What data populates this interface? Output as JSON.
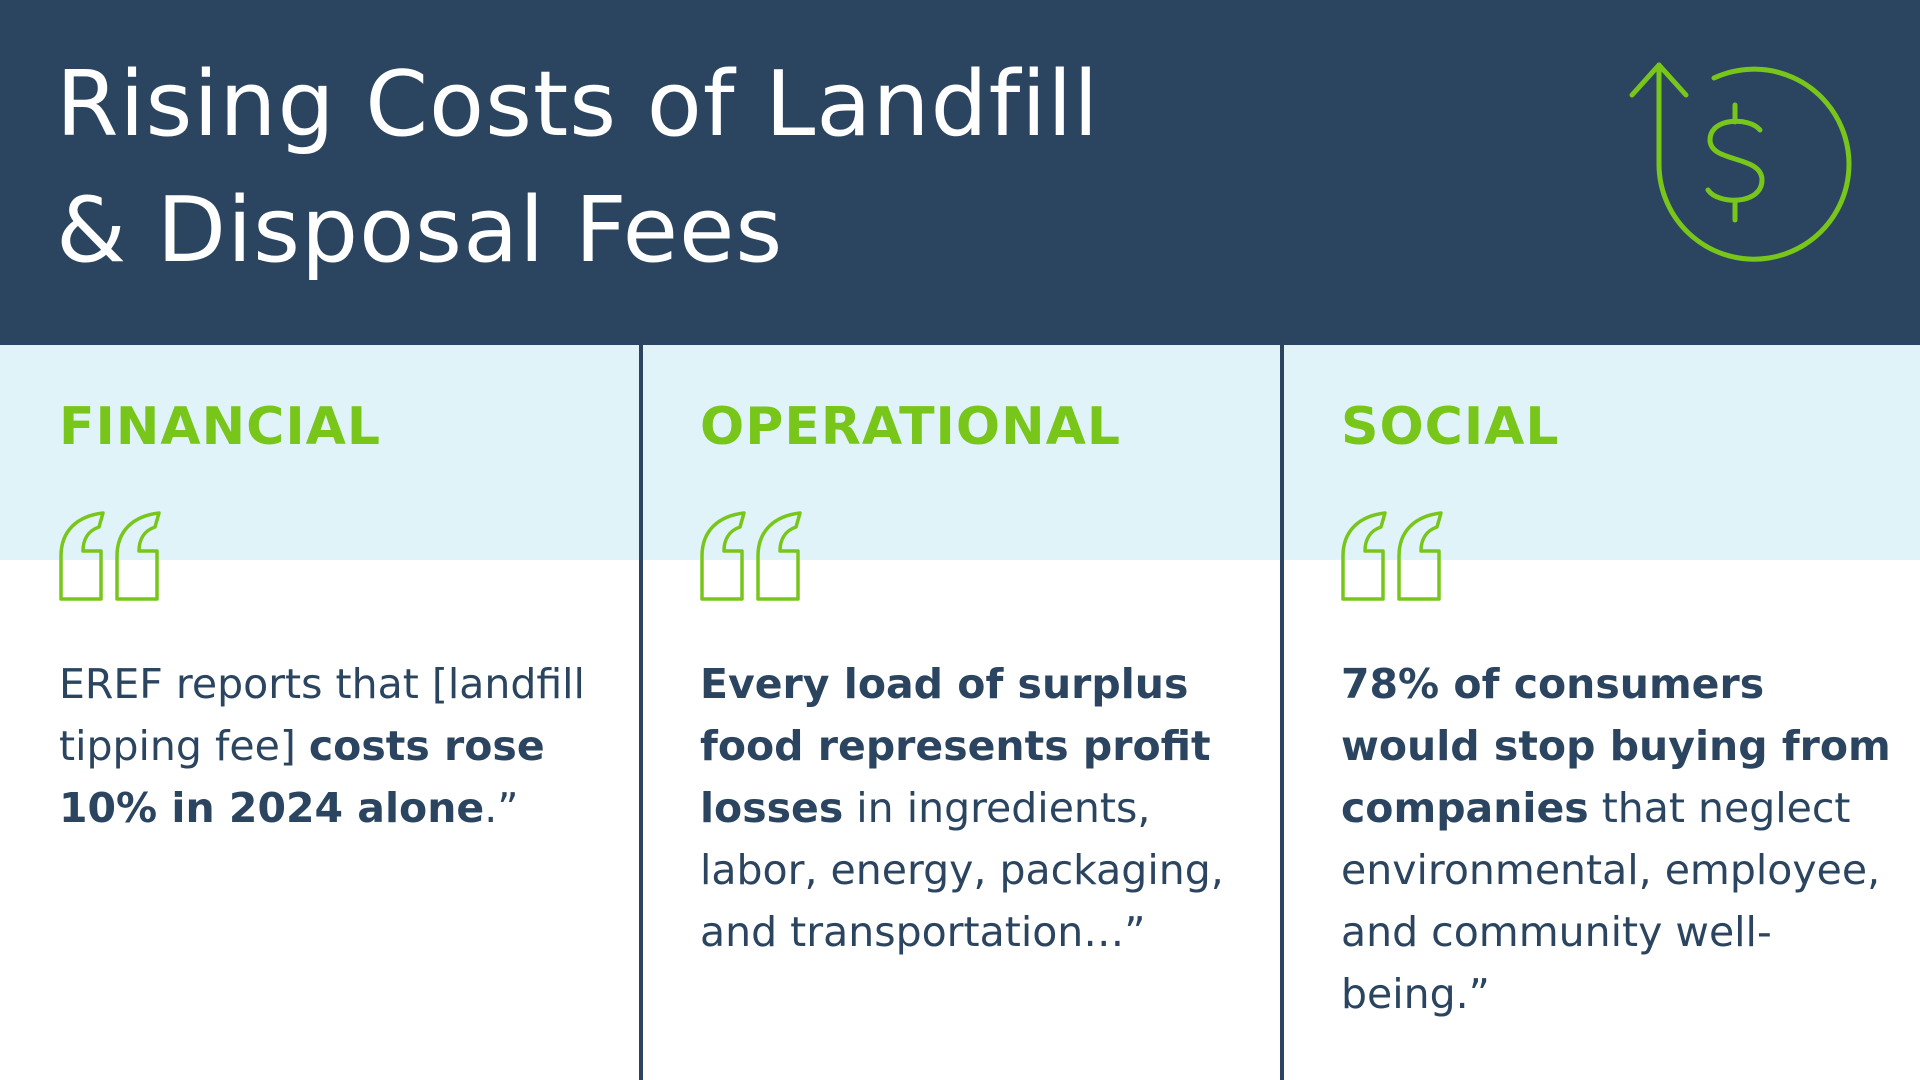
{
  "header": {
    "title": [
      "Rising Costs of Landfill",
      "& Disposal Fees"
    ]
  },
  "columns": [
    {
      "heading": "FINANCIAL",
      "quote": [
        {
          "text": "EREF reports that [landfill tipping fee] ",
          "bold": false
        },
        {
          "text": "costs rose 10% in 2024 alone",
          "bold": true
        },
        {
          "text": ".”",
          "bold": false
        }
      ]
    },
    {
      "heading": "OPERATIONAL",
      "quote": [
        {
          "text": "Every load of surplus food represents profit losses",
          "bold": true
        },
        {
          "text": " in ingredients, labor, energy, packaging, and transportation…”",
          "bold": false
        }
      ]
    },
    {
      "heading": "SOCIAL",
      "quote": [
        {
          "text": "78% of consumers would stop buying from companies",
          "bold": true
        },
        {
          "text": " that neglect environmental, employee, and community well-being.”",
          "bold": false
        }
      ]
    }
  ]
}
